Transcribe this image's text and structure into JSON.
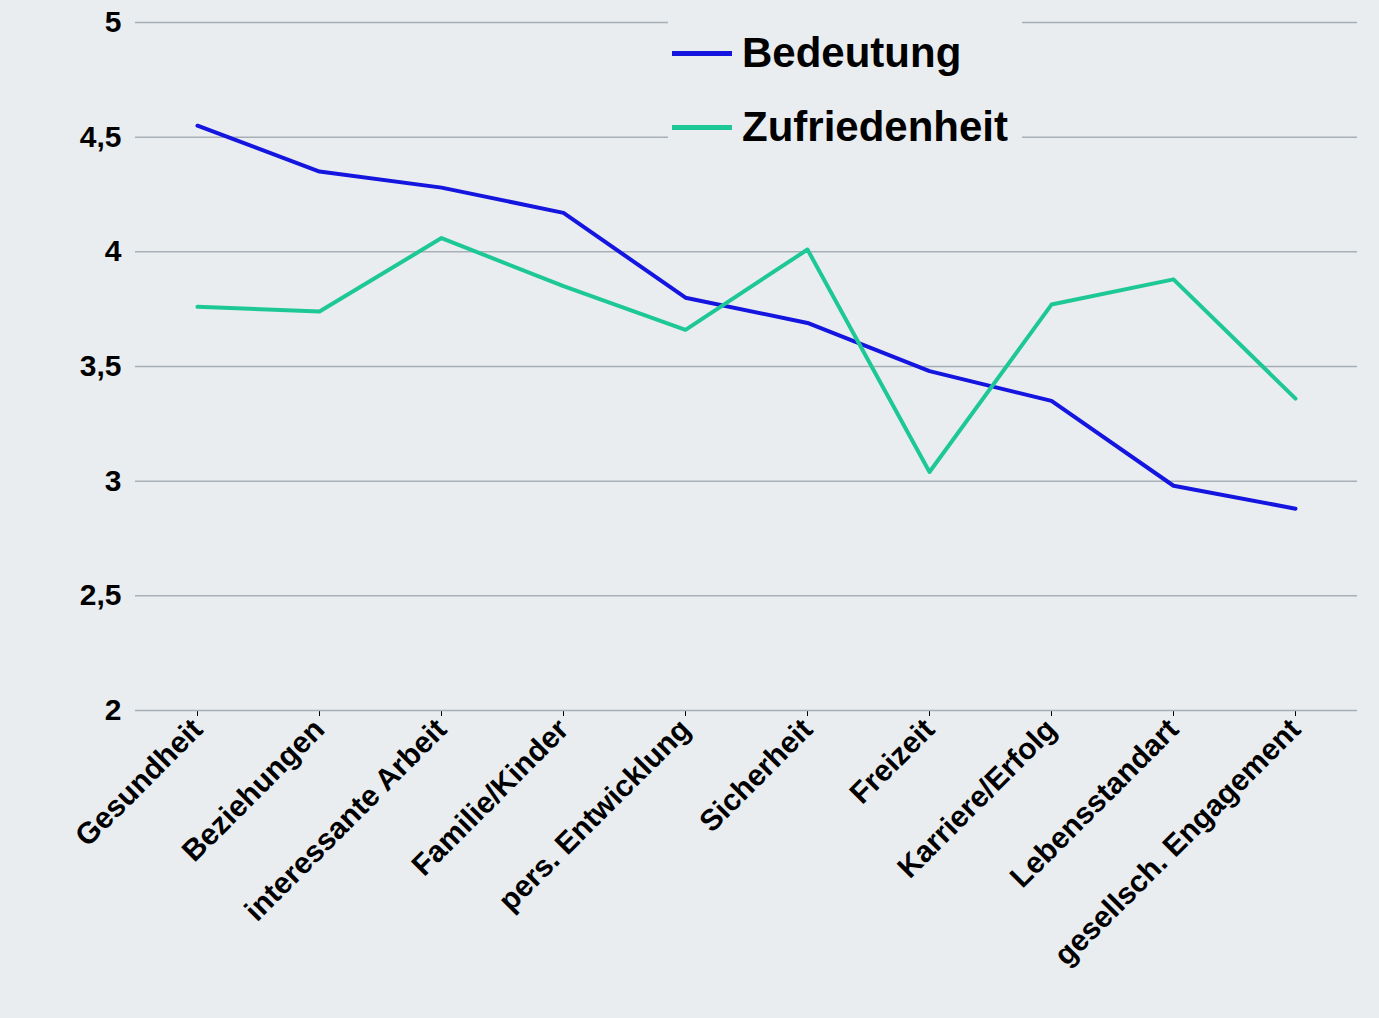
{
  "chart_data": {
    "type": "line",
    "categories": [
      "Gesundheit",
      "Beziehungen",
      "interessante Arbeit",
      "Familie/Kinder",
      "pers. Entwicklung",
      "Sicherheit",
      "Freizeit",
      "Karriere/Erfolg",
      "Lebensstandart",
      "gesellsch. Engagement"
    ],
    "series": [
      {
        "name": "Bedeutung",
        "color": "#1515e0",
        "values": [
          4.55,
          4.35,
          4.28,
          4.17,
          3.8,
          3.69,
          3.48,
          3.35,
          2.98,
          2.88
        ]
      },
      {
        "name": "Zufriedenheit",
        "color": "#1ec896",
        "values": [
          3.76,
          3.74,
          4.06,
          3.85,
          3.66,
          4.01,
          3.04,
          3.77,
          3.88,
          3.36
        ]
      }
    ],
    "ylim": [
      2,
      5
    ],
    "yticks": [
      2,
      {
        "value": 2.5,
        "label": "2,5"
      },
      3,
      {
        "value": 3.5,
        "label": "3,5"
      },
      4,
      {
        "value": 4.5,
        "label": "4,5"
      },
      5
    ],
    "grid": true,
    "legend": "top-right"
  }
}
